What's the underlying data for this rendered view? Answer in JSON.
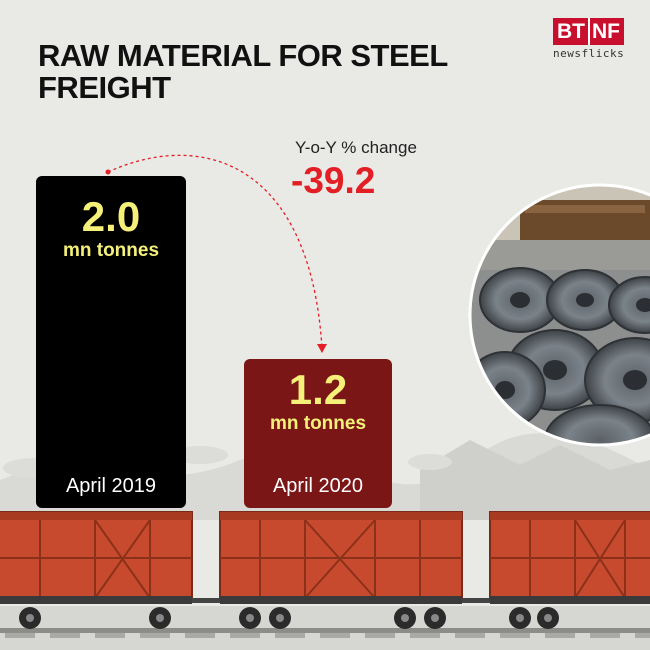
{
  "title": "RAW MATERIAL FOR STEEL FREIGHT",
  "logo": {
    "primary": "BT",
    "secondary": "NF",
    "sub": "newsflicks"
  },
  "yoy": {
    "label": "Y-o-Y % change",
    "value": "-39.2"
  },
  "colors": {
    "bar_2019": "#000000",
    "bar_2020": "#7a1616",
    "value_text": "#f4f07a",
    "accent": "#e31e24",
    "wagon": "#c84a2e"
  },
  "chart_data": {
    "type": "bar",
    "title": "RAW MATERIAL FOR STEEL FREIGHT",
    "categories": [
      "April 2019",
      "April 2020"
    ],
    "values": [
      2.0,
      1.2
    ],
    "value_labels": [
      "2.0",
      "1.2"
    ],
    "unit": "mn tonnes",
    "annotation": {
      "label": "Y-o-Y % change",
      "value": -39.2
    },
    "xlabel": "",
    "ylabel": ""
  }
}
